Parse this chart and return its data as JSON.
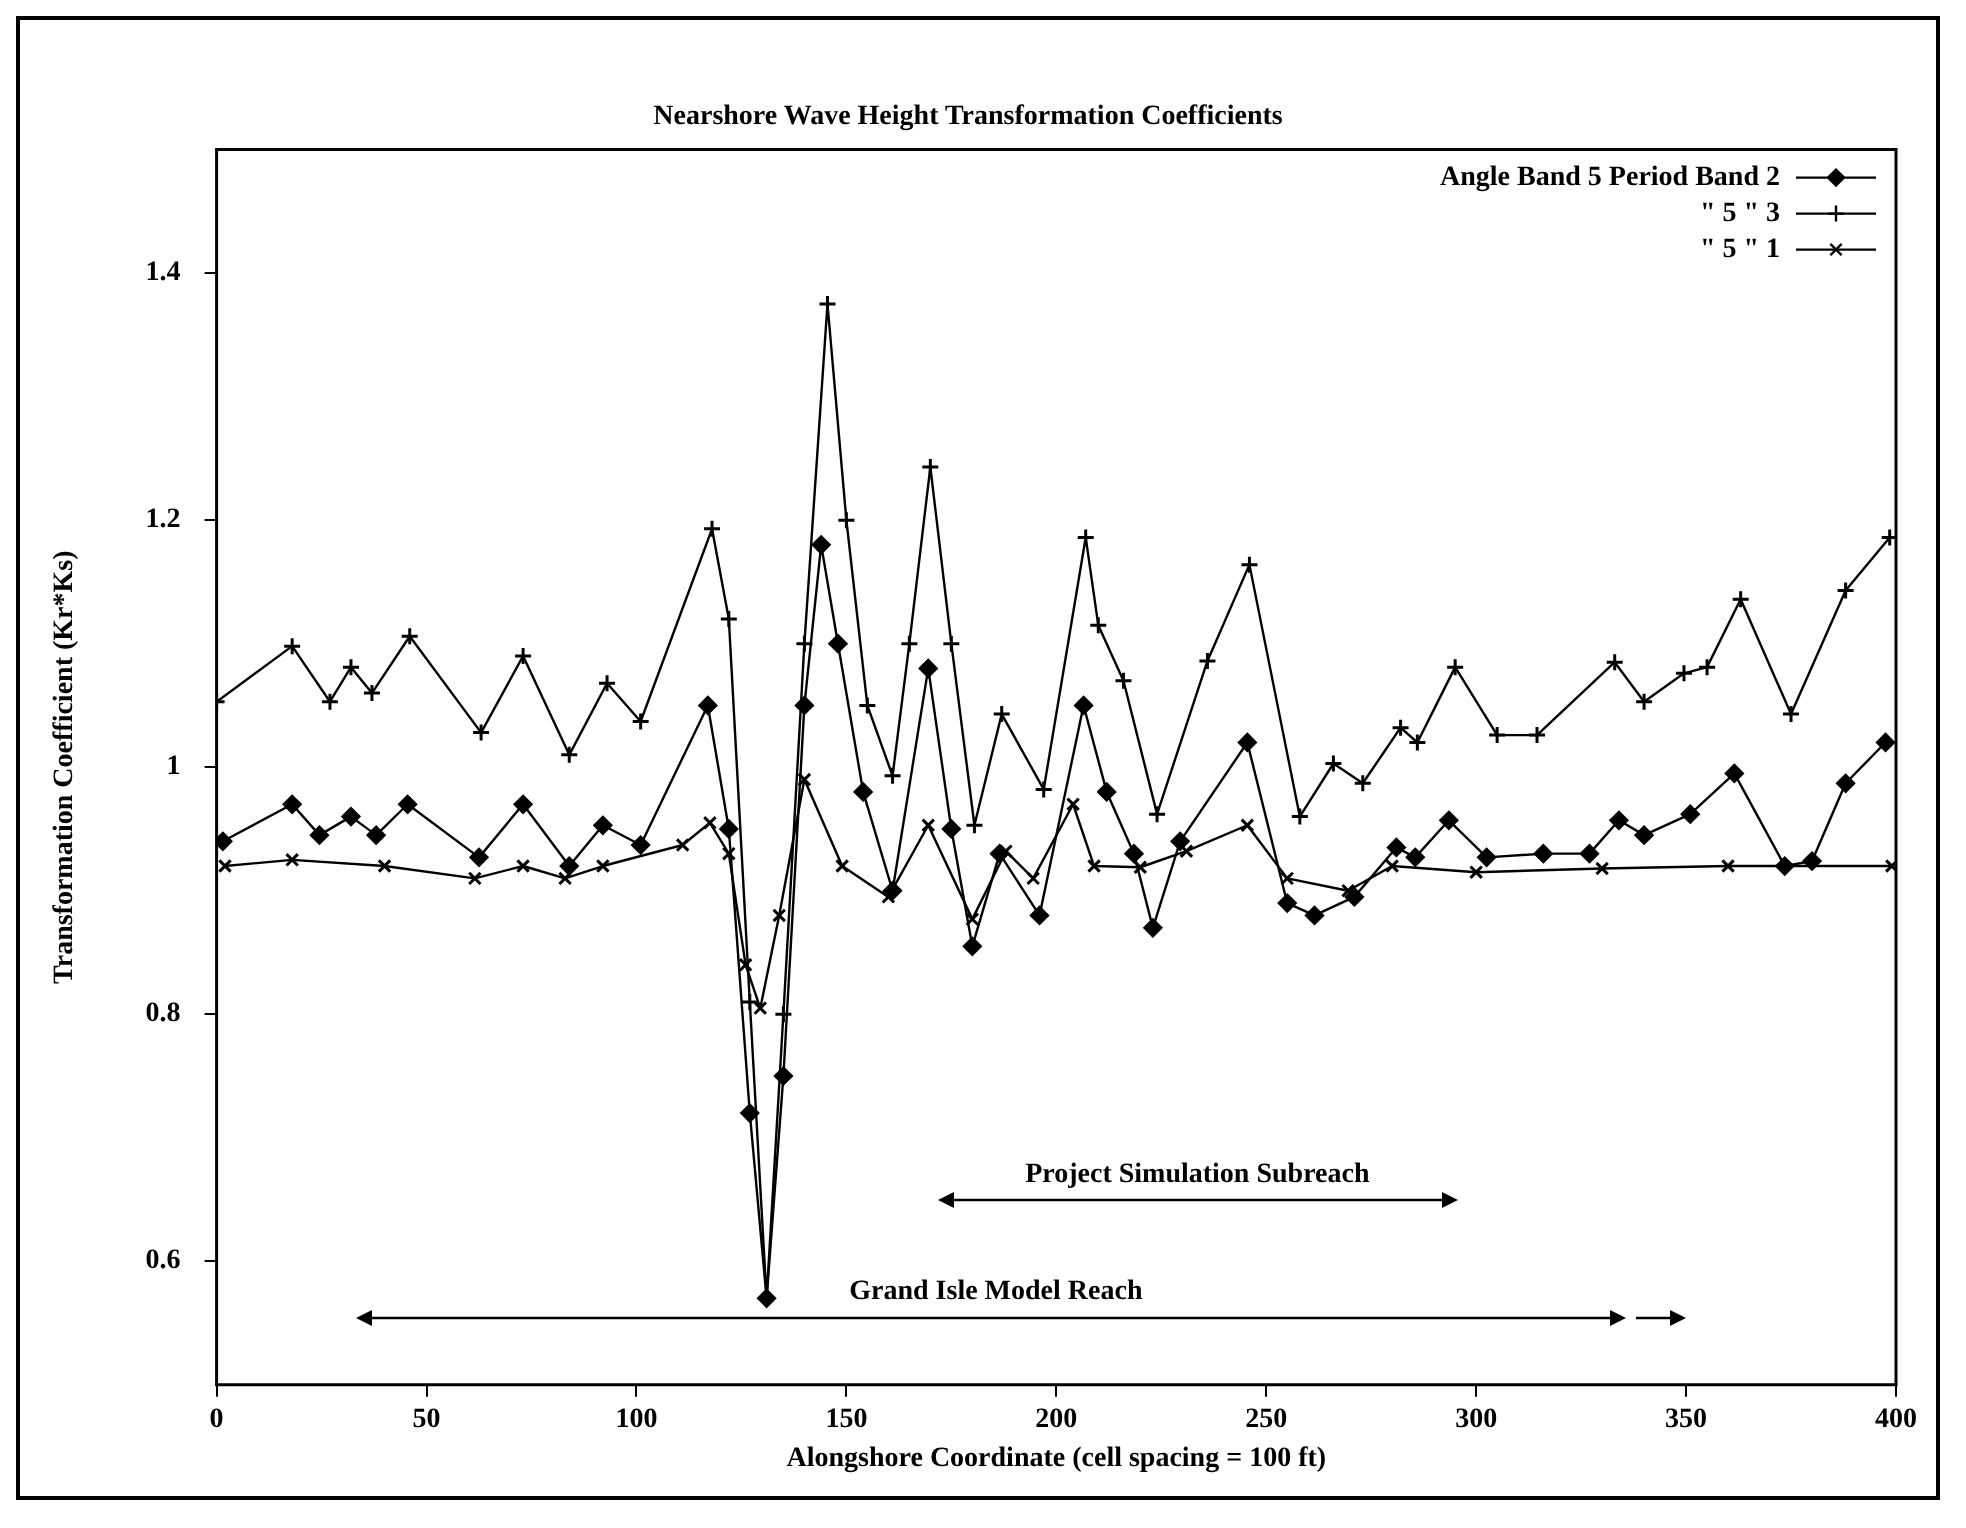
{
  "chart_data": {
    "type": "line",
    "title": "Nearshore Wave Height Transformation Coefficients",
    "xlabel": "Alongshore Coordinate (cell spacing = 100 ft)",
    "ylabel": "Transformation Coefficient (Kr*Ks)",
    "xlim": [
      0,
      400
    ],
    "xticks": [
      0,
      50,
      100,
      150,
      200,
      250,
      300,
      350,
      400
    ],
    "ylim": [
      0.5,
      1.5
    ],
    "yticks": [
      0.6,
      0.8,
      1,
      1.2,
      1.4
    ],
    "grid": false,
    "legend": "top right",
    "series": [
      {
        "name": "Angle Band 5 Period Band 2",
        "color": "#000000",
        "marker": "diamond",
        "x": [
          1.5,
          18,
          24.5,
          32,
          38,
          45.5,
          62.5,
          73,
          84,
          92,
          101,
          117,
          122,
          127,
          131,
          135,
          140,
          144,
          148,
          154,
          161,
          169.5,
          175,
          180,
          186.5,
          196,
          206.5,
          212,
          218.5,
          223,
          229.5,
          245.5,
          255,
          261.5,
          271,
          281,
          285.5,
          293.5,
          302.5,
          316,
          327,
          334,
          340,
          351,
          361.5,
          373.5,
          380,
          388,
          397.5
        ],
        "values": [
          0.94,
          0.97,
          0.945,
          0.96,
          0.945,
          0.97,
          0.927,
          0.97,
          0.92,
          0.953,
          0.937,
          1.05,
          0.95,
          0.72,
          0.57,
          0.75,
          1.05,
          1.18,
          1.1,
          0.98,
          0.9,
          1.08,
          0.95,
          0.855,
          0.93,
          0.88,
          1.05,
          0.98,
          0.93,
          0.87,
          0.94,
          1.02,
          0.89,
          0.88,
          0.895,
          0.935,
          0.927,
          0.957,
          0.927,
          0.93,
          0.93,
          0.957,
          0.945,
          0.962,
          0.995,
          0.92,
          0.924,
          0.987,
          1.02
        ]
      },
      {
        "name": "\" 5 \" 3",
        "color": "#000000",
        "marker": "cross",
        "x": [
          0,
          18,
          27,
          32,
          37,
          46,
          63,
          73,
          84,
          93,
          101,
          118,
          122,
          127,
          131,
          135,
          140,
          145.5,
          150,
          155,
          161,
          165,
          170,
          175,
          180.5,
          187,
          197,
          207,
          210,
          216,
          224,
          236,
          246,
          258,
          266,
          273,
          282,
          286,
          295,
          305,
          314.5,
          333,
          340,
          349.5,
          355,
          363,
          375,
          388,
          398.5
        ],
        "values": [
          1.053,
          1.098,
          1.053,
          1.081,
          1.06,
          1.106,
          1.028,
          1.09,
          1.01,
          1.068,
          1.037,
          1.193,
          1.12,
          0.81,
          0.57,
          0.8,
          1.1,
          1.375,
          1.2,
          1.05,
          0.993,
          1.1,
          1.243,
          1.1,
          0.953,
          1.043,
          0.982,
          1.186,
          1.115,
          1.07,
          0.962,
          1.086,
          1.164,
          0.96,
          1.003,
          0.987,
          1.032,
          1.02,
          1.081,
          1.026,
          1.026,
          1.085,
          1.053,
          1.076,
          1.081,
          1.136,
          1.043,
          1.143,
          1.186
        ]
      },
      {
        "name": "\" 5 \" 1",
        "color": "#000000",
        "marker": "cross",
        "x": [
          2,
          18,
          40,
          61.5,
          73,
          83,
          92,
          111,
          117.5,
          122,
          126,
          129.5,
          134,
          140,
          149,
          160,
          169.5,
          180,
          188,
          194.5,
          204,
          209,
          220,
          231,
          245.5,
          255,
          269.5,
          280,
          300,
          330,
          360,
          399
        ],
        "values": [
          0.92,
          0.925,
          0.92,
          0.91,
          0.92,
          0.91,
          0.92,
          0.937,
          0.955,
          0.93,
          0.84,
          0.805,
          0.88,
          0.99,
          0.92,
          0.895,
          0.953,
          0.877,
          0.932,
          0.91,
          0.97,
          0.92,
          0.919,
          0.932,
          0.953,
          0.91,
          0.9,
          0.92,
          0.915,
          0.918,
          0.92,
          0.92
        ]
      }
    ],
    "annotations": [
      "Project Simulation Subreach",
      "Grand Isle Model Reach"
    ]
  }
}
